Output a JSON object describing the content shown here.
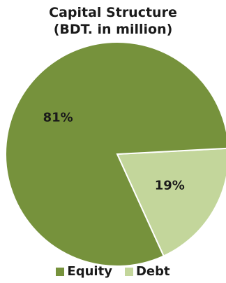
{
  "chart_data": {
    "type": "pie",
    "title": "Capital Structure",
    "subtitle": "(BDT. in million)",
    "slices": [
      {
        "name": "Equity",
        "value": 81,
        "label": "81%",
        "color": "#76923c"
      },
      {
        "name": "Debt",
        "value": 19,
        "label": "19%",
        "color": "#c3d69b"
      }
    ],
    "legend_position": "bottom",
    "start_angle_deg": 87
  }
}
